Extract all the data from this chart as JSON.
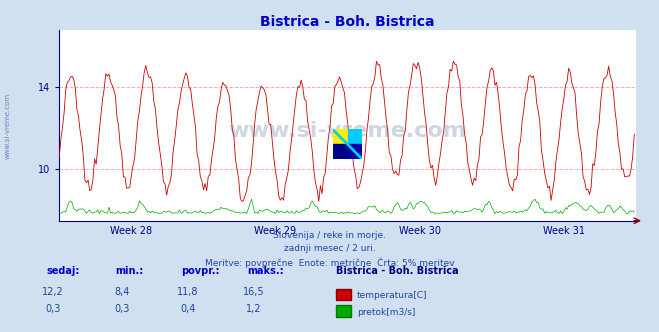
{
  "title": "Bistrica - Boh. Bistrica",
  "title_color": "#0000cc",
  "bg_color": "#d0e0f0",
  "plot_bg_color": "#ffffff",
  "grid_color": "#ffaaaa",
  "axis_color": "#000080",
  "week_labels": [
    "Week 28",
    "Week 29",
    "Week 30",
    "Week 31"
  ],
  "yticks_temp": [
    10,
    14
  ],
  "ylim_temp": [
    7.5,
    16.8
  ],
  "temp_color": "#cc0000",
  "flow_color": "#00aa00",
  "watermark_text": "www.si-vreme.com",
  "watermark_color": "#3a5f8a",
  "watermark_alpha": 0.25,
  "sub_text1": "Slovenija / reke in morje.",
  "sub_text2": "zadnji mesec / 2 uri.",
  "sub_text3": "Meritve: povprečne  Enote: metrične  Črta: 5% meritev",
  "sub_color": "#2244aa",
  "legend_title": "Bistrica - Boh. Bistrica",
  "legend_title_color": "#000080",
  "table_headers": [
    "sedaj:",
    "min.:",
    "povpr.:",
    "maks.:"
  ],
  "table_header_color": "#0000cc",
  "table_row1": [
    "12,2",
    "8,4",
    "11,8",
    "16,5"
  ],
  "table_row2": [
    "0,3",
    "0,3",
    "0,4",
    "1,2"
  ],
  "table_value_color": "#224499",
  "ylabel_color": "#4a6fa5",
  "arrow_color": "#880000",
  "n_points": 360,
  "temp_min": 8.4,
  "temp_max": 16.5,
  "temp_avg": 11.8,
  "flow_min": 0.3,
  "flow_max": 1.2,
  "flow_avg": 0.4,
  "logo_yellow": "#ffee00",
  "logo_cyan": "#00ccff",
  "logo_blue": "#0000aa",
  "logo_darkblue": "#000088"
}
